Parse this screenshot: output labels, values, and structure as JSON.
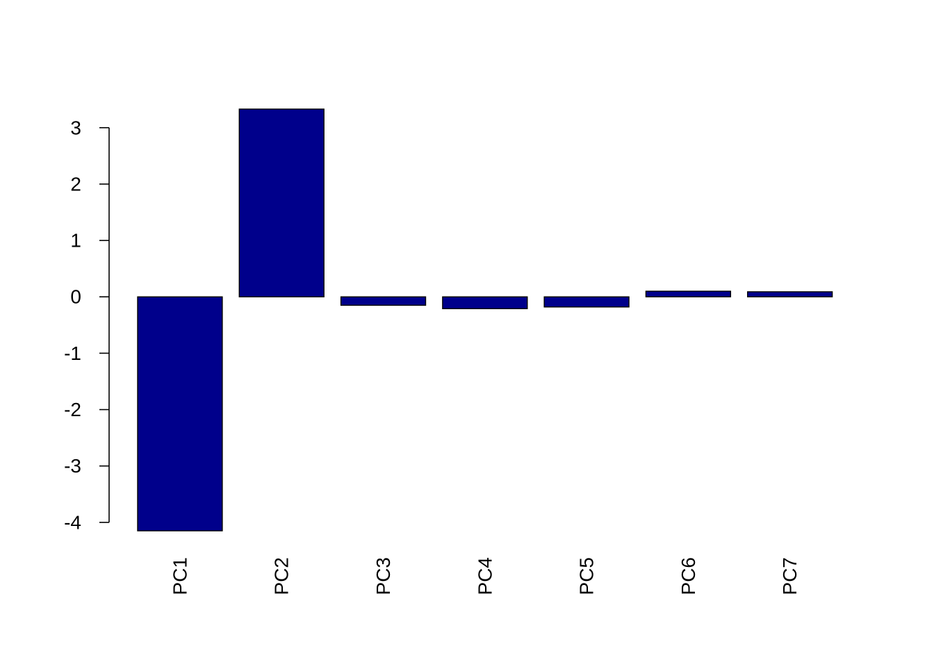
{
  "chart_data": {
    "type": "bar",
    "categories": [
      "PC1",
      "PC2",
      "PC3",
      "PC4",
      "PC5",
      "PC6",
      "PC7"
    ],
    "values": [
      -4.15,
      3.33,
      -0.15,
      -0.21,
      -0.18,
      0.1,
      0.09
    ],
    "bar_color": "#00008B",
    "border_color": "#000000",
    "title": "",
    "xlabel": "",
    "ylabel": "",
    "ylim": [
      -4.15,
      3.33
    ],
    "yticks": [
      -4,
      -3,
      -2,
      -1,
      0,
      1,
      2,
      3
    ],
    "ytick_labels": [
      "-4",
      "-3",
      "-2",
      "-1",
      "0",
      "1",
      "2",
      "3"
    ],
    "grid": false,
    "x_labels_rotation": "vertical"
  }
}
